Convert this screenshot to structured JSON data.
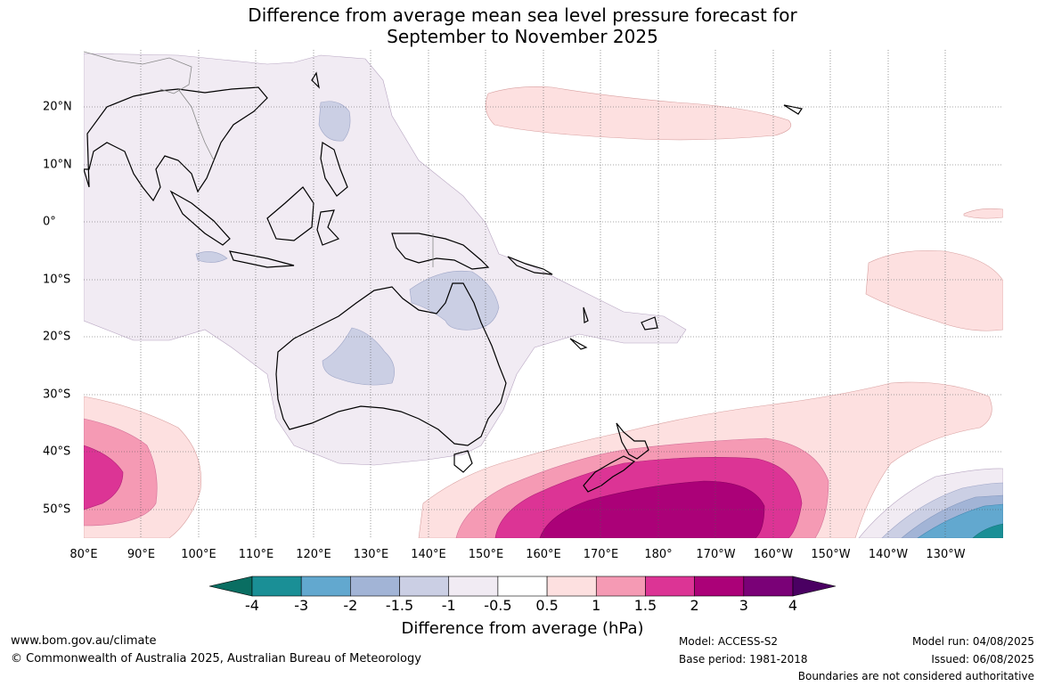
{
  "title": {
    "line1": "Difference from average mean sea level pressure forecast for",
    "line2": "September to November 2025"
  },
  "map": {
    "longitude_labels": [
      "80°E",
      "90°E",
      "100°E",
      "110°E",
      "120°E",
      "130°E",
      "140°E",
      "150°E",
      "160°E",
      "170°E",
      "180°",
      "170°W",
      "160°W",
      "150°W",
      "140°W",
      "130°W"
    ],
    "latitude_labels": [
      "20°N",
      "10°N",
      "0°",
      "10°S",
      "20°S",
      "30°S",
      "40°S",
      "50°S"
    ],
    "extent": {
      "lon_min": 80,
      "lon_max": 240,
      "lat_min": -55,
      "lat_max": 30
    },
    "gridlines": true
  },
  "colorbar": {
    "label": "Difference from average (hPa)",
    "ticks": [
      "-4",
      "-3",
      "-2",
      "-1.5",
      "-1",
      "-0.5",
      "0.5",
      "1",
      "1.5",
      "2",
      "3",
      "4"
    ],
    "colors": [
      "#0a6e62",
      "#1a8f96",
      "#62a8cf",
      "#a2b4d6",
      "#cbcfe4",
      "#f1ebf3",
      "#ffffff",
      "#fde0e0",
      "#f59ab4",
      "#dc3495",
      "#ab0178",
      "#7a0177",
      "#4a0062"
    ]
  },
  "footer": {
    "website": "www.bom.gov.au/climate",
    "copyright": "© Commonwealth of Australia 2025, Australian Bureau of Meteorology",
    "model": "Model: ACCESS-S2",
    "base_period": "Base period: 1981-2018",
    "model_run": "Model run: 04/08/2025",
    "issued": "Issued: 06/08/2025",
    "disclaimer": "Boundaries are not considered authoritative"
  }
}
